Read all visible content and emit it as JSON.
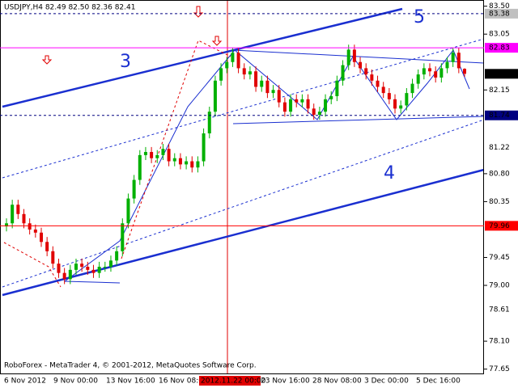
{
  "chart_data": {
    "type": "candlestick",
    "title": "USDJPY,H4  82.49 82.50 82.36 82.41",
    "footer": "RoboForex - MetaTrader 4, © 2001-2012, MetaQuotes Software Corp.",
    "annotations": [
      "3",
      "4",
      "5"
    ],
    "x_labels": [
      "6 Nov 2012",
      "9 Nov 00:00",
      "13 Nov 16:00",
      "16 Nov 08:00",
      "2012.11.22 00:00",
      "23 Nov 16:00",
      "28 Nov 08:00",
      "3 Dec 00:00",
      "5 Dec 16:00"
    ],
    "ylim": [
      77.58,
      83.6
    ],
    "yticks": [
      {
        "value": 83.5,
        "label": "83.50"
      },
      {
        "value": 83.05,
        "label": "83.05"
      },
      {
        "value": 82.15,
        "label": "82.15"
      },
      {
        "value": 80.8,
        "label": "80.80"
      },
      {
        "value": 80.35,
        "label": "80.35"
      },
      {
        "value": 79.45,
        "label": "79.45"
      },
      {
        "value": 79.0,
        "label": "79.00"
      },
      {
        "value": 78.1,
        "label": "78.10"
      },
      {
        "value": 77.65,
        "label": "77.65"
      }
    ],
    "levels": [
      {
        "value": 83.38,
        "label": "83.38",
        "color": "#000080",
        "box": "#c0c0c0",
        "line": "dashed"
      },
      {
        "value": 82.83,
        "label": "82.83",
        "color": "#ff00ff",
        "box": "#ff00ff",
        "line": "solid"
      },
      {
        "value": 82.41,
        "label": "82.41",
        "color": "#000000",
        "box": "#000000",
        "line": "none"
      },
      {
        "value": 81.74,
        "label": "81.74",
        "color": "#000080",
        "box": "#000080",
        "line": "dashed"
      },
      {
        "value": 81.22,
        "label": "81.22",
        "color": "#b0b0b0",
        "box": "none",
        "line": "none"
      },
      {
        "value": 79.96,
        "label": "79.96",
        "color": "#ff0000",
        "box": "#ff0000",
        "line": "solid"
      },
      {
        "value": 78.61,
        "label": "78.61",
        "color": "#b0b0b0",
        "box": "none",
        "line": "none"
      }
    ],
    "up_color": "#00b000",
    "down_color": "#e00000",
    "open": [
      79.95,
      80.0,
      80.3,
      80.15,
      80.0,
      79.9,
      79.85,
      79.7,
      79.55,
      79.35,
      79.2,
      79.1,
      79.25,
      79.35,
      79.3,
      79.25,
      79.2,
      79.3,
      79.3,
      79.4,
      79.55,
      80.0,
      80.4,
      80.7,
      81.1,
      81.15,
      81.05,
      81.1,
      81.2,
      81.0,
      81.05,
      80.95,
      81.0,
      80.9,
      81.0,
      81.45,
      81.8,
      82.3,
      82.5,
      82.6,
      82.75,
      82.5,
      82.4,
      82.45,
      82.2,
      82.3,
      82.1,
      82.15,
      81.95,
      81.8,
      82.0,
      81.95,
      82.0,
      81.85,
      81.75,
      81.8,
      82.0,
      82.05,
      82.3,
      82.55,
      82.8,
      82.6,
      82.5,
      82.4,
      82.3,
      82.2,
      82.1,
      82.0,
      81.85,
      81.9,
      82.1,
      82.25,
      82.4,
      82.5,
      82.45,
      82.35,
      82.5,
      82.6,
      82.75,
      82.49
    ],
    "high": [
      80.08,
      80.38,
      80.38,
      80.23,
      80.08,
      79.98,
      79.93,
      79.78,
      79.63,
      79.43,
      79.28,
      79.33,
      79.43,
      79.43,
      79.38,
      79.33,
      79.38,
      79.38,
      79.48,
      79.63,
      80.08,
      80.48,
      80.78,
      81.18,
      81.23,
      81.23,
      81.18,
      81.28,
      81.28,
      81.13,
      81.13,
      81.08,
      81.08,
      81.08,
      81.53,
      81.88,
      82.38,
      82.58,
      82.68,
      82.83,
      82.83,
      82.58,
      82.53,
      82.53,
      82.38,
      82.38,
      82.23,
      82.23,
      82.03,
      82.08,
      82.08,
      82.08,
      82.08,
      81.93,
      81.88,
      82.08,
      82.13,
      82.38,
      82.63,
      82.88,
      82.88,
      82.68,
      82.58,
      82.48,
      82.38,
      82.28,
      82.18,
      82.08,
      81.98,
      82.18,
      82.33,
      82.48,
      82.58,
      82.58,
      82.53,
      82.58,
      82.68,
      82.83,
      82.83,
      82.5
    ],
    "low": [
      79.87,
      79.92,
      80.07,
      79.92,
      79.82,
      79.77,
      79.62,
      79.47,
      79.27,
      79.12,
      79.02,
      79.02,
      79.17,
      79.22,
      79.17,
      79.12,
      79.12,
      79.22,
      79.22,
      79.32,
      79.47,
      79.92,
      80.32,
      80.62,
      81.02,
      80.97,
      80.97,
      81.02,
      80.92,
      80.92,
      80.87,
      80.87,
      80.82,
      80.82,
      80.92,
      81.37,
      81.72,
      82.22,
      82.42,
      82.52,
      82.42,
      82.32,
      82.32,
      82.12,
      82.12,
      82.02,
      82.02,
      81.87,
      81.72,
      81.72,
      81.87,
      81.87,
      81.77,
      81.67,
      81.67,
      81.72,
      81.92,
      81.97,
      82.22,
      82.47,
      82.52,
      82.42,
      82.32,
      82.22,
      82.12,
      82.02,
      81.92,
      81.77,
      81.77,
      81.82,
      82.02,
      82.17,
      82.32,
      82.37,
      82.27,
      82.27,
      82.42,
      82.52,
      82.42,
      82.36
    ],
    "close": [
      80.0,
      80.3,
      80.15,
      80.0,
      79.9,
      79.85,
      79.7,
      79.55,
      79.35,
      79.2,
      79.1,
      79.25,
      79.35,
      79.3,
      79.25,
      79.2,
      79.3,
      79.3,
      79.4,
      79.55,
      80.0,
      80.4,
      80.7,
      81.1,
      81.15,
      81.05,
      81.1,
      81.2,
      81.0,
      81.05,
      80.95,
      81.0,
      80.9,
      81.0,
      81.45,
      81.8,
      82.3,
      82.5,
      82.6,
      82.75,
      82.5,
      82.4,
      82.45,
      82.2,
      82.3,
      82.1,
      82.15,
      81.95,
      81.8,
      82.0,
      81.95,
      82.0,
      81.85,
      81.75,
      81.8,
      82.0,
      82.05,
      82.3,
      82.55,
      82.8,
      82.6,
      82.5,
      82.4,
      82.3,
      82.2,
      82.1,
      82.0,
      81.85,
      81.9,
      82.1,
      82.25,
      82.4,
      82.5,
      82.45,
      82.35,
      82.5,
      82.6,
      82.75,
      82.5,
      82.41
    ]
  }
}
